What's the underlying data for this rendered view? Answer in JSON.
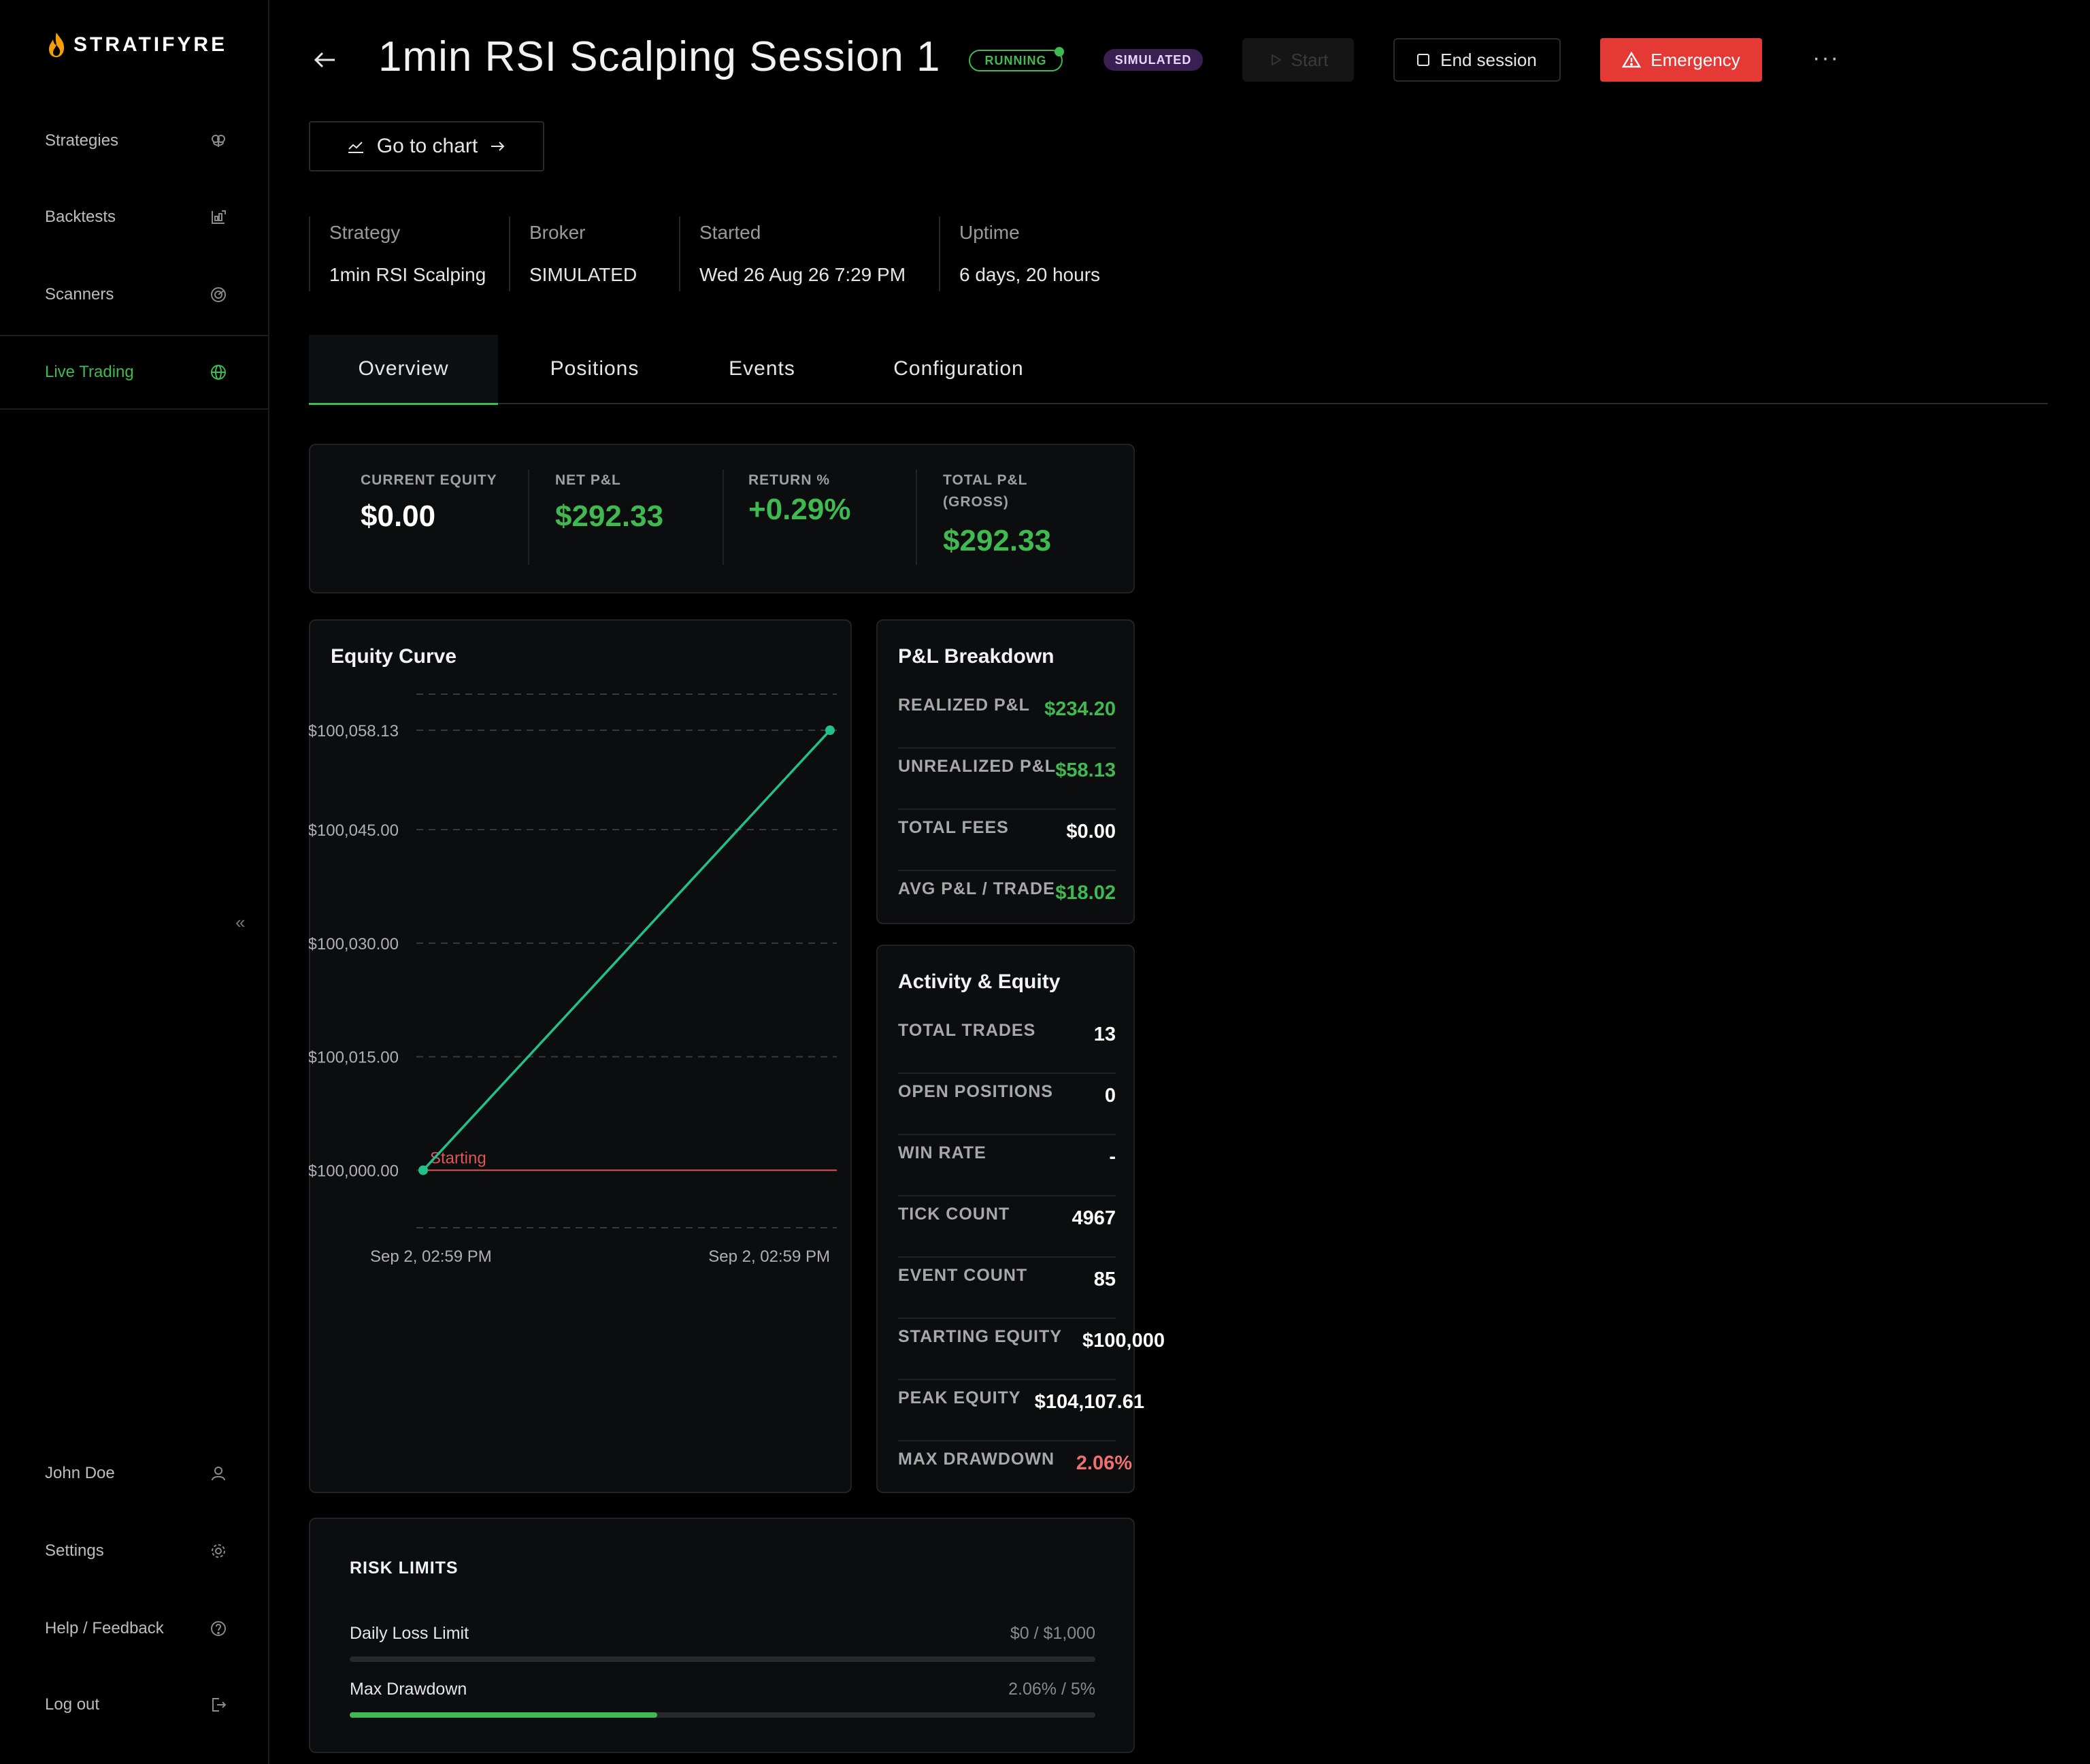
{
  "brand": {
    "name": "STRATIFYRE"
  },
  "sidebar": {
    "items": [
      {
        "label": "Strategies",
        "icon": "brain-icon"
      },
      {
        "label": "Backtests",
        "icon": "backtest-icon"
      },
      {
        "label": "Scanners",
        "icon": "radar-icon"
      },
      {
        "label": "Live Trading",
        "icon": "globe-icon",
        "active": true
      }
    ],
    "bottom": [
      {
        "label": "John Doe",
        "icon": "user-icon"
      },
      {
        "label": "Settings",
        "icon": "gear-icon"
      },
      {
        "label": "Help / Feedback",
        "icon": "help-icon"
      },
      {
        "label": "Log out",
        "icon": "logout-icon"
      }
    ]
  },
  "header": {
    "title": "1min RSI Scalping Session 1",
    "status_badge": "RUNNING",
    "mode_badge": "SIMULATED",
    "start_label": "Start",
    "end_label": "End session",
    "emergency_label": "Emergency",
    "go_to_chart_label": "Go to chart"
  },
  "info": {
    "strategy_label": "Strategy",
    "strategy": "1min RSI Scalping",
    "broker_label": "Broker",
    "broker": "SIMULATED",
    "started_label": "Started",
    "started": "Wed 26 Aug 26 7:29 PM",
    "uptime_label": "Uptime",
    "uptime": "6 days, 20 hours"
  },
  "tabs": [
    "Overview",
    "Positions",
    "Events",
    "Configuration"
  ],
  "stats": {
    "current_equity_label": "CURRENT EQUITY",
    "current_equity": "$0.00",
    "net_pnl_label": "NET P&L",
    "net_pnl": "$292.33",
    "return_label": "RETURN %",
    "return": "+0.29%",
    "total_pnl_label_1": "TOTAL P&L",
    "total_pnl_label_2": "(GROSS)",
    "total_pnl": "$292.33"
  },
  "equity_curve": {
    "title": "Equity Curve",
    "ticks": [
      "$100,058.13",
      "$100,045.00",
      "$100,030.00",
      "$100,015.00",
      "$100,000.00"
    ],
    "x_labels": [
      "Sep 2, 02:59 PM",
      "Sep 2, 02:59 PM"
    ],
    "baseline_label": "Starting"
  },
  "chart_data": {
    "type": "line",
    "title": "Equity Curve",
    "x": [
      "Sep 2, 02:59 PM",
      "Sep 2, 02:59 PM"
    ],
    "series": [
      {
        "values": [
          100000.0,
          100058.13
        ]
      }
    ],
    "ylim": [
      99996,
      100062
    ],
    "y_ticks": [
      100000.0,
      100015.0,
      100030.0,
      100045.0,
      100058.13
    ],
    "reference_line": {
      "label": "Starting",
      "value": 100000.0
    },
    "colors": {
      "line": "#22c08a",
      "reference": "#e05555"
    }
  },
  "pnl_breakdown": {
    "title": "P&L Breakdown",
    "rows": [
      {
        "label": "REALIZED P&L",
        "value": "$234.20",
        "tone": "green"
      },
      {
        "label": "UNREALIZED P&L",
        "value": "$58.13",
        "tone": "green"
      },
      {
        "label": "TOTAL FEES",
        "value": "$0.00",
        "tone": "white"
      },
      {
        "label": "AVG P&L / TRADE",
        "value": "$18.02",
        "tone": "green"
      }
    ]
  },
  "activity": {
    "title": "Activity & Equity",
    "rows": [
      {
        "label": "TOTAL TRADES",
        "value": "13",
        "tone": "white"
      },
      {
        "label": "OPEN POSITIONS",
        "value": "0",
        "tone": "white"
      },
      {
        "label": "WIN RATE",
        "value": "-",
        "tone": "white"
      },
      {
        "label": "TICK COUNT",
        "value": "4967",
        "tone": "white"
      },
      {
        "label": "EVENT COUNT",
        "value": "85",
        "tone": "white"
      },
      {
        "label": "STARTING EQUITY",
        "value": "$100,000",
        "tone": "white"
      },
      {
        "label": "PEAK EQUITY",
        "value": "$104,107.61",
        "tone": "white"
      },
      {
        "label": "MAX DRAWDOWN",
        "value": "2.06%",
        "tone": "red"
      }
    ]
  },
  "risk_limits": {
    "title": "RISK LIMITS",
    "rows": [
      {
        "label": "Daily Loss Limit",
        "value": "$0 / $1,000",
        "progress": 0
      },
      {
        "label": "Max Drawdown",
        "value": "2.06% / 5%",
        "progress": 0.412
      }
    ]
  },
  "colors": {
    "accent": "#3fb950",
    "danger": "#e53935",
    "badge_sim": "#3a1f52"
  }
}
